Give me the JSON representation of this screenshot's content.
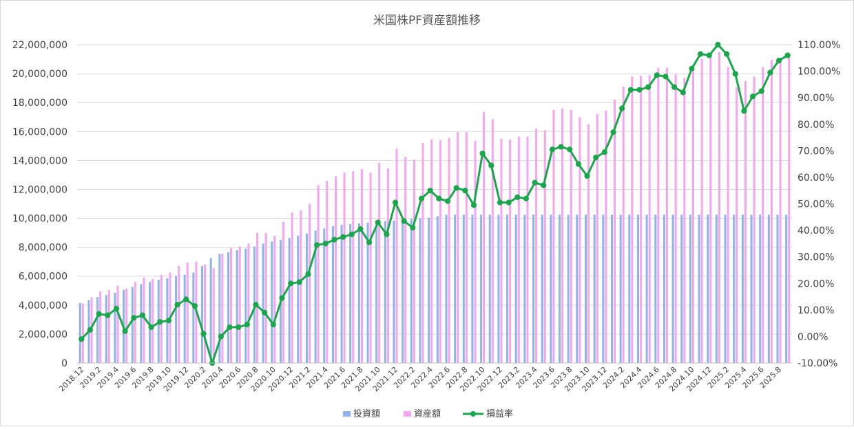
{
  "chart_data": {
    "type": "bar",
    "title": "米国株PF資産額推移",
    "categories": [
      "2018.12",
      "2019.1",
      "2019.2",
      "2019.3",
      "2019.4",
      "2019.5",
      "2019.6",
      "2019.7",
      "2019.8",
      "2019.9",
      "2019.10",
      "2019.11",
      "2019.12",
      "2020.1",
      "2020.2",
      "2020.3",
      "2020.4",
      "2020.5",
      "2020.6",
      "2020.7",
      "2020.8",
      "2020.9",
      "2020.10",
      "2020.11",
      "2020.12",
      "2021.1",
      "2021.2",
      "2021.3",
      "2021.4",
      "2021.5",
      "2021.6",
      "2021.7",
      "2021.8",
      "2021.9",
      "2021.10",
      "2021.11",
      "2021.12",
      "2022.1",
      "2022.2",
      "2022.3",
      "2022.4",
      "2022.5",
      "2022.6",
      "2022.7",
      "2022.8",
      "2022.9",
      "2022.10",
      "2022.11",
      "2022.12",
      "2023.1",
      "2023.2",
      "2023.3",
      "2023.4",
      "2023.5",
      "2023.6",
      "2023.7",
      "2023.8",
      "2023.9",
      "2023.10",
      "2023.11",
      "2023.12",
      "2024.1",
      "2024.2",
      "2024.3",
      "2024.4",
      "2024.5",
      "2024.6",
      "2024.7",
      "2024.8",
      "2024.9",
      "2024.10",
      "2024.11",
      "2024.12",
      "2025.1",
      "2025.2",
      "2025.3",
      "2025.4",
      "2025.5",
      "2025.6",
      "2025.7",
      "2025.8",
      "2025.9"
    ],
    "x_tick_labels": [
      "2018.12",
      "2019.2",
      "2019.4",
      "2019.6",
      "2019.8",
      "2019.10",
      "2019.12",
      "2020.2",
      "2020.4",
      "2020.6",
      "2020.8",
      "2020.10",
      "2020.12",
      "2021.2",
      "2021.4",
      "2021.6",
      "2021.8",
      "2021.10",
      "2021.12",
      "2022.2",
      "2022.4",
      "2022.6",
      "2022.8",
      "2022.10",
      "2022.12",
      "2023.2",
      "2023.4",
      "2023.6",
      "2023.8",
      "2023.10",
      "2023.12",
      "2024.2",
      "2024.4",
      "2024.6",
      "2024.8",
      "2024.10",
      "2024.12",
      "2025.2",
      "2025.4",
      "2025.6",
      "2025.8"
    ],
    "series": [
      {
        "name": "投資額",
        "type": "bar",
        "axis": "left",
        "color": "#8fb4ea",
        "values": [
          4150000,
          4350000,
          4550000,
          4700000,
          4850000,
          5050000,
          5250000,
          5450000,
          5600000,
          5750000,
          5850000,
          6000000,
          6100000,
          6250000,
          6700000,
          7250000,
          7550000,
          7650000,
          7800000,
          7900000,
          8050000,
          8250000,
          8400000,
          8500000,
          8650000,
          8800000,
          8950000,
          9150000,
          9300000,
          9450000,
          9550000,
          9600000,
          9650000,
          9700000,
          9750000,
          9800000,
          9850000,
          9900000,
          9950000,
          10000000,
          10050000,
          10150000,
          10250000,
          10250000,
          10250000,
          10250000,
          10250000,
          10250000,
          10250000,
          10250000,
          10250000,
          10250000,
          10250000,
          10250000,
          10250000,
          10250000,
          10250000,
          10250000,
          10250000,
          10250000,
          10250000,
          10250000,
          10250000,
          10250000,
          10250000,
          10250000,
          10250000,
          10250000,
          10250000,
          10250000,
          10250000,
          10250000,
          10250000,
          10250000,
          10250000,
          10250000,
          10250000,
          10250000,
          10250000,
          10250000,
          10250000,
          10250000
        ]
      },
      {
        "name": "資産額",
        "type": "bar",
        "axis": "left",
        "color": "#f4a6f2",
        "values": [
          4100000,
          4550000,
          4950000,
          5050000,
          5350000,
          5150000,
          5600000,
          5900000,
          5800000,
          6100000,
          6250000,
          6700000,
          6950000,
          7000000,
          6800000,
          6550000,
          7550000,
          7950000,
          8050000,
          8250000,
          9000000,
          9000000,
          8800000,
          9750000,
          10400000,
          10550000,
          11000000,
          12300000,
          12600000,
          12900000,
          13150000,
          13250000,
          13400000,
          13150000,
          13850000,
          13450000,
          14800000,
          14250000,
          14050000,
          15200000,
          15450000,
          15400000,
          15550000,
          15950000,
          15950000,
          15350000,
          17350000,
          16850000,
          15500000,
          15450000,
          15650000,
          15650000,
          16200000,
          16100000,
          17500000,
          17600000,
          17500000,
          17000000,
          16500000,
          17200000,
          17450000,
          18200000,
          19100000,
          19800000,
          19850000,
          19900000,
          20400000,
          20400000,
          19950000,
          19700000,
          20600000,
          21000000,
          21450000,
          21500000,
          20450000,
          19050000,
          19500000,
          19800000,
          20450000,
          20950000,
          21100000,
          21200000
        ]
      },
      {
        "name": "損益率",
        "type": "line",
        "axis": "right",
        "color": "#1aa64a",
        "values": [
          -1.0,
          2.5,
          8.5,
          8.0,
          10.5,
          2.0,
          7.0,
          8.0,
          3.5,
          5.5,
          6.0,
          12.0,
          14.0,
          11.5,
          1.0,
          -10.0,
          0.0,
          3.5,
          3.5,
          4.5,
          12.0,
          9.0,
          4.5,
          14.5,
          20.0,
          20.5,
          23.5,
          34.5,
          35.0,
          36.5,
          37.5,
          38.5,
          40.5,
          35.5,
          43.0,
          38.5,
          50.5,
          43.5,
          41.0,
          52.0,
          55.0,
          52.0,
          51.0,
          56.0,
          55.0,
          49.5,
          69.0,
          64.5,
          50.5,
          50.5,
          52.5,
          52.0,
          58.0,
          57.0,
          70.5,
          71.5,
          70.5,
          65.0,
          60.5,
          67.5,
          69.5,
          77.0,
          86.0,
          93.0,
          93.0,
          94.0,
          98.5,
          98.0,
          94.0,
          92.0,
          101.0,
          106.5,
          106.0,
          110.0,
          106.5,
          99.0,
          85.0,
          90.5,
          92.5,
          99.5,
          104.0,
          106.0
        ]
      }
    ],
    "y_left": {
      "min": 0,
      "max": 22000000,
      "ticks": [
        "0",
        "2,000,000",
        "4,000,000",
        "6,000,000",
        "8,000,000",
        "10,000,000",
        "12,000,000",
        "14,000,000",
        "16,000,000",
        "18,000,000",
        "20,000,000",
        "22,000,000"
      ]
    },
    "y_right": {
      "min": -10,
      "max": 110,
      "ticks": [
        "-10.00%",
        "0.00%",
        "10.00%",
        "20.00%",
        "30.00%",
        "40.00%",
        "50.00%",
        "60.00%",
        "70.00%",
        "80.00%",
        "90.00%",
        "100.00%",
        "110.00%"
      ]
    },
    "grid": true,
    "legend_position": "bottom"
  }
}
